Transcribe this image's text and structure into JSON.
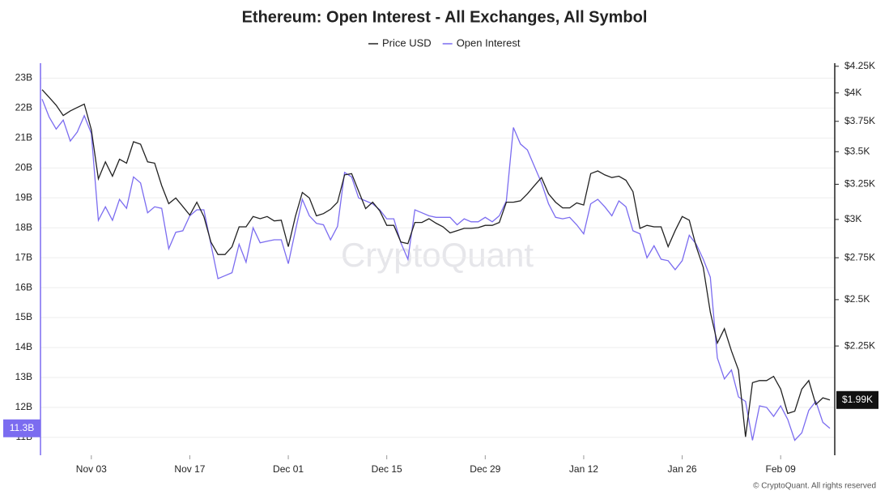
{
  "chart_data": {
    "type": "line",
    "title": "Ethereum: Open Interest - All Exchanges, All Symbol",
    "watermark": "CryptoQuant",
    "footer": "© CryptoQuant. All rights reserved",
    "categories": [
      null,
      null,
      null,
      null,
      null,
      null,
      null,
      "Nov 03",
      null,
      null,
      null,
      null,
      null,
      null,
      null,
      null,
      null,
      null,
      null,
      null,
      null,
      "Nov 17",
      null,
      null,
      null,
      null,
      null,
      null,
      null,
      null,
      null,
      null,
      null,
      null,
      null,
      "Dec 01",
      null,
      null,
      null,
      null,
      null,
      null,
      null,
      null,
      null,
      null,
      null,
      null,
      null,
      "Dec 15",
      null,
      null,
      null,
      null,
      null,
      null,
      null,
      null,
      null,
      null,
      null,
      null,
      null,
      "Dec 29",
      null,
      null,
      null,
      null,
      null,
      null,
      null,
      null,
      null,
      null,
      null,
      null,
      null,
      "Jan 12",
      null,
      null,
      null,
      null,
      null,
      null,
      null,
      null,
      null,
      null,
      null,
      null,
      null,
      "Jan 26",
      null,
      null,
      null,
      null,
      null,
      null,
      null,
      null,
      null,
      null,
      null,
      null,
      null,
      "Feb 09",
      null,
      null,
      null,
      null,
      null,
      null,
      null
    ],
    "series": [
      {
        "name": "Price USD",
        "color": "#222222",
        "axis": "y2",
        "last_value_label": {
          "value": 1990,
          "label": "$1.99K"
        },
        "values": [
          4030,
          3960,
          3890,
          3800,
          3840,
          3870,
          3900,
          3680,
          3290,
          3420,
          3310,
          3440,
          3410,
          3580,
          3560,
          3420,
          3410,
          3240,
          3110,
          3150,
          3090,
          3030,
          3120,
          3020,
          2850,
          2770,
          2770,
          2820,
          2950,
          2950,
          3020,
          3005,
          3020,
          2990,
          2995,
          2820,
          3020,
          3190,
          3150,
          3025,
          3040,
          3070,
          3120,
          3320,
          3330,
          3200,
          3075,
          3120,
          3060,
          2960,
          2960,
          2850,
          2840,
          2980,
          2980,
          3005,
          2975,
          2950,
          2910,
          2925,
          2940,
          2940,
          2945,
          2960,
          2960,
          2980,
          3120,
          3120,
          3130,
          3180,
          3240,
          3300,
          3180,
          3120,
          3080,
          3080,
          3115,
          3100,
          3330,
          3350,
          3320,
          3300,
          3310,
          3280,
          3195,
          2940,
          2960,
          2950,
          2950,
          2820,
          2925,
          3020,
          2995,
          2820,
          2690,
          2430,
          2265,
          2340,
          2225,
          2130,
          1830,
          2070,
          2080,
          2080,
          2100,
          2040,
          1930,
          1940,
          2040,
          2080,
          1970,
          2000,
          1990
        ]
      },
      {
        "name": "Open Interest",
        "color": "#7b6cf0",
        "axis": "y",
        "last_value_label": {
          "value": 11.3,
          "label": "11.3B"
        },
        "values": [
          22.3,
          21.7,
          21.3,
          21.6,
          20.9,
          21.2,
          21.75,
          21.15,
          18.25,
          18.7,
          18.25,
          18.95,
          18.65,
          19.7,
          19.5,
          18.5,
          18.7,
          18.65,
          17.3,
          17.85,
          17.9,
          18.4,
          18.6,
          18.6,
          17.45,
          16.3,
          16.4,
          16.5,
          17.45,
          16.85,
          18.0,
          17.5,
          17.55,
          17.6,
          17.6,
          16.8,
          17.9,
          18.95,
          18.4,
          18.15,
          18.1,
          17.6,
          18.05,
          19.85,
          19.7,
          19.0,
          18.9,
          18.8,
          18.6,
          18.3,
          18.3,
          17.5,
          16.95,
          18.6,
          18.5,
          18.4,
          18.35,
          18.35,
          18.35,
          18.1,
          18.3,
          18.2,
          18.2,
          18.35,
          18.2,
          18.4,
          18.9,
          21.35,
          20.8,
          20.6,
          20.05,
          19.5,
          18.8,
          18.35,
          18.3,
          18.35,
          18.1,
          17.8,
          18.8,
          18.95,
          18.7,
          18.4,
          18.9,
          18.7,
          17.9,
          17.8,
          17.0,
          17.4,
          16.95,
          16.9,
          16.6,
          16.9,
          17.75,
          17.45,
          16.95,
          16.35,
          13.65,
          12.95,
          13.25,
          12.35,
          12.2,
          10.9,
          12.05,
          12.0,
          11.7,
          12.05,
          11.6,
          10.9,
          11.15,
          11.9,
          12.2,
          11.5,
          11.3
        ]
      }
    ],
    "ylim": [
      10.4,
      23.5
    ],
    "yticks": [
      {
        "value": 11,
        "label": "11B"
      },
      {
        "value": 12,
        "label": "12B"
      },
      {
        "value": 13,
        "label": "13B"
      },
      {
        "value": 14,
        "label": "14B"
      },
      {
        "value": 15,
        "label": "15B"
      },
      {
        "value": 16,
        "label": "16B"
      },
      {
        "value": 17,
        "label": "17B"
      },
      {
        "value": 18,
        "label": "18B"
      },
      {
        "value": 19,
        "label": "19B"
      },
      {
        "value": 20,
        "label": "20B"
      },
      {
        "value": 21,
        "label": "21B"
      },
      {
        "value": 22,
        "label": "22B"
      },
      {
        "value": 23,
        "label": "23B"
      }
    ],
    "y2lim": [
      1755,
      4280
    ],
    "y2_log": true,
    "y2ticks": [
      {
        "value": 2250,
        "label": "$2.25K"
      },
      {
        "value": 2500,
        "label": "$2.5K"
      },
      {
        "value": 2750,
        "label": "$2.75K"
      },
      {
        "value": 3000,
        "label": "$3K"
      },
      {
        "value": 3250,
        "label": "$3.25K"
      },
      {
        "value": 3500,
        "label": "$3.5K"
      },
      {
        "value": 3750,
        "label": "$3.75K"
      },
      {
        "value": 4000,
        "label": "$4K"
      },
      {
        "value": 4250,
        "label": "$4.25K"
      }
    ],
    "grid": true,
    "legend": "top"
  }
}
